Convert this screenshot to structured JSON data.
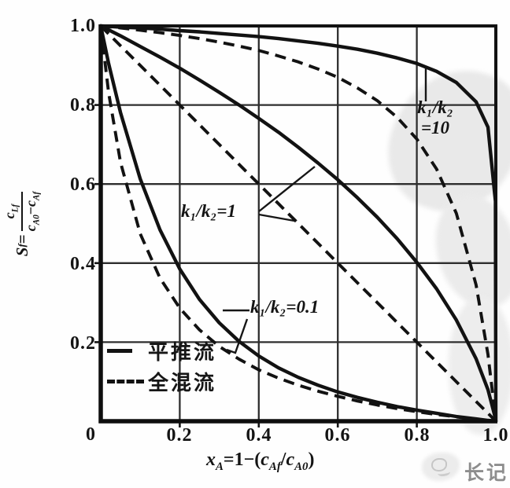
{
  "axis": {
    "y": {
      "sym": "S",
      "sym_sub": "f",
      "eq": "=",
      "num_base": "c",
      "num_sub": "Lf",
      "den_base1": "c",
      "den_sub1": "A0",
      "den_op": "−",
      "den_base2": "c",
      "den_sub2": "Af"
    },
    "x": {
      "sym": "x",
      "sym_sub": "A",
      "mid": "=1−(",
      "frac_base1": "c",
      "frac_sub1": "Af",
      "op": "/",
      "frac_base2": "c",
      "frac_sub2": "A0",
      "close": ")"
    }
  },
  "legend": {
    "plug": {
      "label": "平推流",
      "style": "solid"
    },
    "mixed": {
      "label": "全混流",
      "style": "dashed"
    }
  },
  "annotations": {
    "k10": {
      "line1": "k₁/k₂",
      "line2": "=10"
    },
    "k1": {
      "text": "k₁/k₂=1"
    },
    "k01": {
      "text": "k₁/k₂=0.1"
    }
  },
  "stamp": {
    "text": "长记"
  },
  "chart_data": {
    "type": "line",
    "title": "",
    "xlabel": "xA = 1 − (cAf/cA0)",
    "ylabel": "Sf = cLf/(cA0 − cAf)",
    "xlim": [
      0,
      1
    ],
    "ylim": [
      0,
      1
    ],
    "grid": true,
    "grid_ticks": [
      0.2,
      0.4,
      0.6,
      0.8
    ],
    "xtick_labels": [
      "0",
      "0.2",
      "0.4",
      "0.6",
      "0.8",
      "1.0"
    ],
    "ytick_labels": [
      "0",
      "0.2",
      "0.4",
      "0.6",
      "0.8",
      "1.0"
    ],
    "legend_position": "lower-left inside",
    "x": [
      0,
      0.02,
      0.05,
      0.1,
      0.15,
      0.2,
      0.25,
      0.3,
      0.35,
      0.4,
      0.45,
      0.5,
      0.55,
      0.6,
      0.65,
      0.7,
      0.75,
      0.8,
      0.85,
      0.9,
      0.95,
      0.98,
      0.999,
      1
    ],
    "series": [
      {
        "name": "plug flow k1/k2=10",
        "flow": "平推流",
        "ratio": "k1/k2=10",
        "style": "solid",
        "y": [
          1,
          0.999,
          0.997,
          0.995,
          0.992,
          0.988,
          0.985,
          0.981,
          0.977,
          0.973,
          0.968,
          0.962,
          0.956,
          0.949,
          0.941,
          0.931,
          0.919,
          0.905,
          0.885,
          0.857,
          0.808,
          0.744,
          0.556,
          0
        ]
      },
      {
        "name": "mixed flow k1/k2=10",
        "flow": "全混流",
        "ratio": "k1/k2=10",
        "style": "dashed",
        "y": [
          1,
          0.998,
          0.995,
          0.989,
          0.983,
          0.976,
          0.968,
          0.959,
          0.949,
          0.938,
          0.924,
          0.909,
          0.891,
          0.87,
          0.843,
          0.811,
          0.769,
          0.714,
          0.638,
          0.526,
          0.345,
          0.169,
          0.01,
          0
        ]
      },
      {
        "name": "plug flow k1/k2=1",
        "flow": "平推流",
        "ratio": "k1/k2=1",
        "style": "solid",
        "y": [
          1,
          0.99,
          0.975,
          0.948,
          0.921,
          0.893,
          0.863,
          0.832,
          0.8,
          0.766,
          0.731,
          0.693,
          0.653,
          0.611,
          0.565,
          0.516,
          0.462,
          0.402,
          0.335,
          0.256,
          0.158,
          0.08,
          0.007,
          0
        ]
      },
      {
        "name": "mixed flow k1/k2=1",
        "flow": "全混流",
        "ratio": "k1/k2=1",
        "style": "dashed",
        "y": [
          1,
          0.98,
          0.95,
          0.9,
          0.85,
          0.8,
          0.75,
          0.7,
          0.65,
          0.6,
          0.55,
          0.5,
          0.45,
          0.4,
          0.35,
          0.3,
          0.25,
          0.2,
          0.15,
          0.1,
          0.05,
          0.02,
          0.001,
          0
        ]
      },
      {
        "name": "plug flow k1/k2=0.1",
        "flow": "平推流",
        "ratio": "k1/k2=0.1",
        "style": "solid",
        "y": [
          1,
          0.905,
          0.781,
          0.613,
          0.484,
          0.385,
          0.308,
          0.249,
          0.202,
          0.165,
          0.135,
          0.111,
          0.091,
          0.074,
          0.06,
          0.048,
          0.037,
          0.028,
          0.02,
          0.012,
          0.006,
          0.002,
          0.0,
          0
        ]
      },
      {
        "name": "mixed flow k1/k2=0.1",
        "flow": "全混流",
        "ratio": "k1/k2=0.1",
        "style": "dashed",
        "y": [
          1,
          0.831,
          0.655,
          0.474,
          0.362,
          0.286,
          0.231,
          0.189,
          0.157,
          0.13,
          0.109,
          0.091,
          0.076,
          0.063,
          0.051,
          0.041,
          0.032,
          0.024,
          0.017,
          0.011,
          0.005,
          0.002,
          0.0,
          0
        ]
      }
    ],
    "colors": {
      "line": "#121212",
      "grid": "#2e2e2e",
      "watermark": "#e9e9e9",
      "stamp": "#8d8d8d"
    }
  }
}
